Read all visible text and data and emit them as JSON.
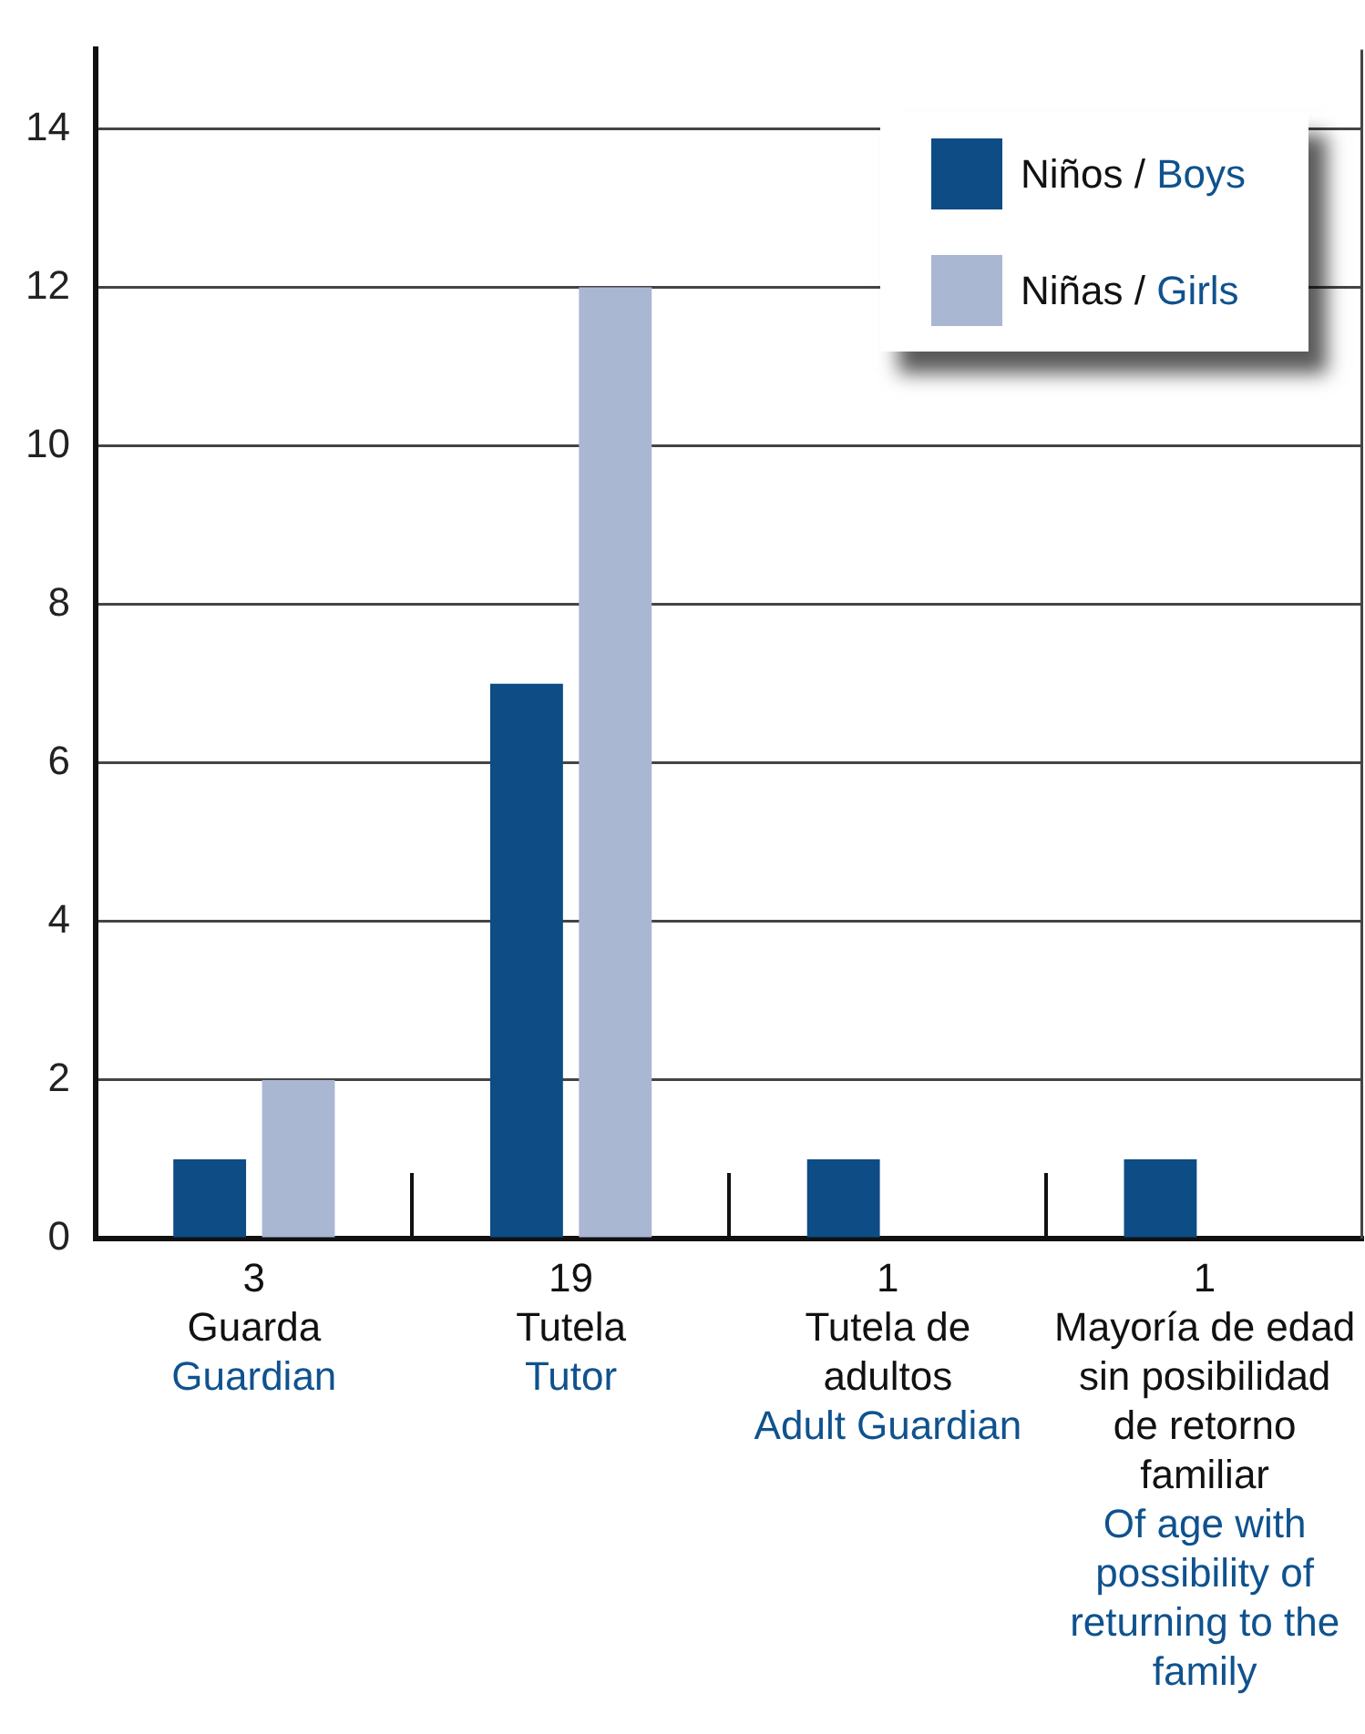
{
  "chart_data": {
    "type": "bar",
    "categories": [
      "Guarda\nGuardian",
      "Tutela\nTutor",
      "Tutela de adultos\nAdult Guardian",
      "Mayoría de edad sin posibilidad de retorno familiar\nOf age with possibility of returning to the family"
    ],
    "totals": [
      "3",
      "19",
      "1",
      "1"
    ],
    "series": [
      {
        "name": "Niños / Boys",
        "color": "#0d4c84",
        "values": [
          1,
          7,
          1,
          1
        ]
      },
      {
        "name": "Niñas / Girls",
        "color": "#aab7d3",
        "values": [
          2,
          12,
          0,
          0
        ]
      }
    ],
    "ylim": [
      0,
      15
    ],
    "yticks": [
      0,
      2,
      4,
      6,
      8,
      10,
      12,
      14
    ],
    "grid": "y",
    "legend": "top right"
  }
}
